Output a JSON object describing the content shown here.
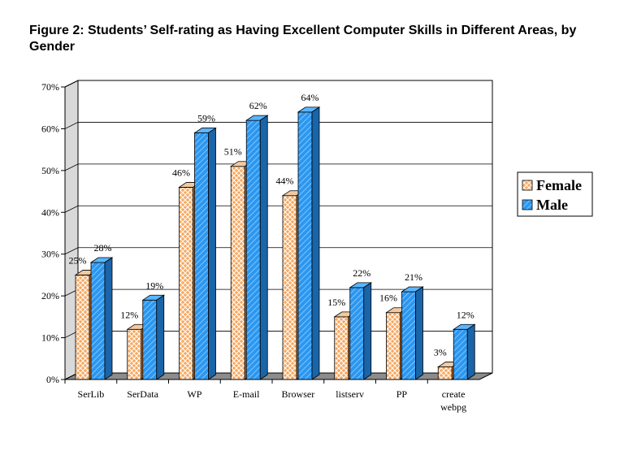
{
  "chart_data": {
    "type": "bar",
    "title": "Figure 2: Students’ Self-rating as Having Excellent Computer Skills in Different Areas, by Gender",
    "categories": [
      [
        "SerLib"
      ],
      [
        "SerData"
      ],
      [
        "WP"
      ],
      [
        "E-mail"
      ],
      [
        "Browser"
      ],
      [
        "listserv"
      ],
      [
        "PP"
      ],
      [
        "create",
        "webpg"
      ]
    ],
    "series": [
      {
        "name": "Female",
        "values": [
          25,
          12,
          46,
          51,
          44,
          15,
          16,
          3
        ],
        "labels": [
          "25%",
          "12%",
          "46%",
          "51%",
          "44%",
          "15%",
          "16%",
          "3%"
        ],
        "color": "#f5a25a"
      },
      {
        "name": "Male",
        "values": [
          28,
          19,
          59,
          62,
          64,
          22,
          21,
          12
        ],
        "labels": [
          "28%",
          "19%",
          "59%",
          "62%",
          "64%",
          "22%",
          "21%",
          "12%"
        ],
        "color": "#2e9bf2"
      }
    ],
    "yticks": [
      "0%",
      "10%",
      "20%",
      "30%",
      "40%",
      "50%",
      "60%",
      "70%"
    ],
    "ylim": [
      0,
      70
    ],
    "xlabel": "",
    "ylabel": "",
    "grid": true,
    "legend": "right",
    "style": "3d-clustered"
  }
}
